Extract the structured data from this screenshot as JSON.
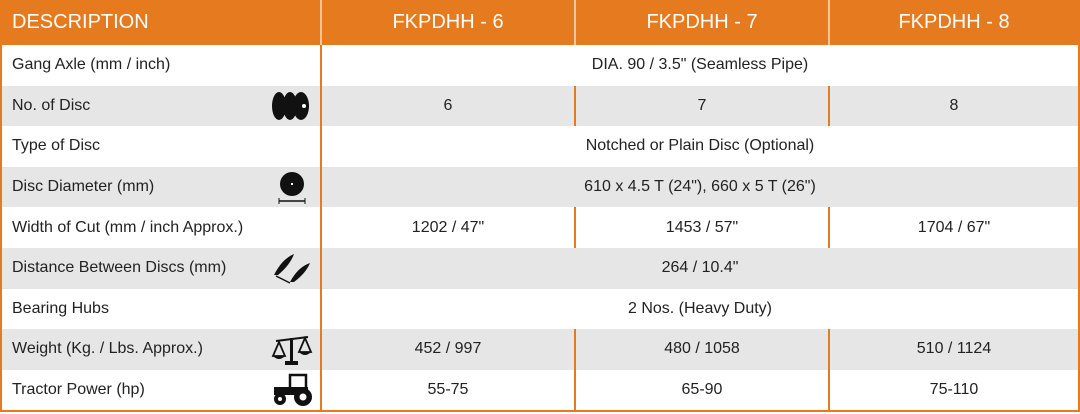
{
  "header": {
    "description": "DESCRIPTION",
    "models": [
      "FKPDHH - 6",
      "FKPDHH - 7",
      "FKPDHH - 8"
    ]
  },
  "colors": {
    "accent": "#e57a1e",
    "row_alt": "#e6e6e6"
  },
  "rows": [
    {
      "label": "Gang Axle (mm / inch)",
      "value": "DIA. 90 / 3.5\" (Seamless Pipe)"
    },
    {
      "label": "No. of Disc",
      "icon": "discs-icon",
      "values": [
        "6",
        "7",
        "8"
      ]
    },
    {
      "label": "Type of Disc",
      "value": "Notched or Plain Disc (Optional)"
    },
    {
      "label": "Disc Diameter (mm)",
      "icon": "disc-diameter-icon",
      "value": "610 x 4.5 T (24\"), 660 x 5 T (26\")"
    },
    {
      "label": "Width of Cut (mm  / inch Approx.)",
      "values": [
        "1202 / 47\"",
        "1453 / 57\"",
        "1704 / 67\""
      ]
    },
    {
      "label": "Distance Between Discs (mm)",
      "icon": "disc-spacing-icon",
      "value": "264 / 10.4\""
    },
    {
      "label": "Bearing Hubs",
      "value": "2 Nos. (Heavy Duty)"
    },
    {
      "label": "Weight (Kg. / Lbs. Approx.)",
      "icon": "scale-icon",
      "values": [
        "452 / 997",
        "480 / 1058",
        "510 / 1124"
      ]
    },
    {
      "label": "Tractor Power (hp)",
      "icon": "tractor-icon",
      "values": [
        "55-75",
        "65-90",
        "75-110"
      ]
    }
  ]
}
